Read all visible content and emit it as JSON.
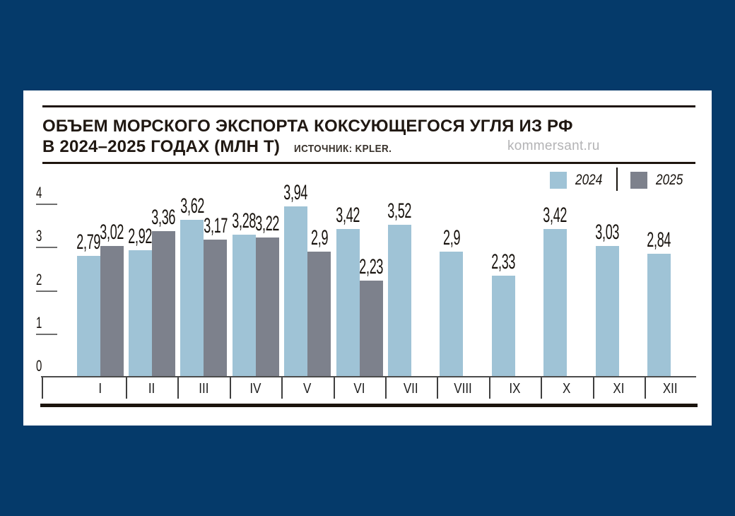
{
  "page": {
    "background_color": "#053a6a",
    "card_color": "#ffffff"
  },
  "header": {
    "title_line1": "ОБЪЕМ МОРСКОГО ЭКСПОРТА КОКСУЮЩЕГОСЯ УГЛЯ ИЗ РФ",
    "title_line2": "В 2024–2025 ГОДАХ (МЛН Т)",
    "source": "ИСТОЧНИК: KPLER.",
    "watermark": "kommersant.ru"
  },
  "legend": {
    "items": [
      {
        "label": "2024",
        "color": "#9fc3d6"
      },
      {
        "label": "2025",
        "color": "#7d818c"
      }
    ]
  },
  "chart_data": {
    "type": "bar",
    "title": "ОБЪЕМ МОРСКОГО ЭКСПОРТА КОКСУЮЩЕГОСЯ УГЛЯ ИЗ РФ В 2024–2025 ГОДАХ (МЛН Т)",
    "source": "ИСТОЧНИК: KPLER.",
    "categories": [
      "I",
      "II",
      "III",
      "IV",
      "V",
      "VI",
      "VII",
      "VIII",
      "IX",
      "X",
      "XI",
      "XII"
    ],
    "series": [
      {
        "name": "2024",
        "color": "#9fc3d6",
        "values": [
          2.79,
          2.92,
          3.62,
          3.28,
          3.94,
          3.42,
          3.52,
          2.9,
          2.33,
          3.42,
          3.03,
          2.84
        ]
      },
      {
        "name": "2025",
        "color": "#7d818c",
        "values": [
          3.02,
          3.36,
          3.17,
          3.22,
          2.9,
          2.23,
          null,
          null,
          null,
          null,
          null,
          null
        ]
      }
    ],
    "xlabel": "",
    "ylabel": "",
    "ylim": [
      0,
      4
    ],
    "yticks": [
      0,
      1,
      2,
      3,
      4
    ],
    "decimal_separator": ",",
    "value_labels_shown": true,
    "grid": false,
    "legend_position": "top-right"
  }
}
